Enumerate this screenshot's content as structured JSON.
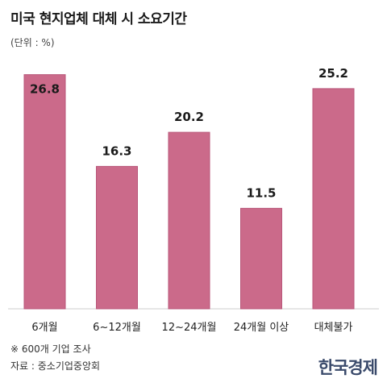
{
  "header": {
    "title": "미국 현지업체 대체 시 소요기간",
    "unit": "(단위 : %)"
  },
  "footer": {
    "note": "※ 600개 기업 조사",
    "source": "자료 : 중소기업중앙회",
    "logo_text": "한국경제"
  },
  "colors": {
    "bar": "#cb6a8a",
    "bar_stroke": "#b85679",
    "axis": "#cccccc"
  },
  "chart_data": {
    "type": "bar",
    "title": "미국 현지업체 대체 시 소요기간",
    "ylabel": "(단위 : %)",
    "categories": [
      "6개월",
      "6~12개월",
      "12~24개월",
      "24개월 이상",
      "대체불가"
    ],
    "values": [
      26.8,
      16.3,
      20.2,
      11.5,
      25.2
    ],
    "value_labels": [
      "26.8",
      "16.3",
      "20.2",
      "11.5",
      "25.2"
    ],
    "ylim": [
      0,
      27.5
    ],
    "grid": false,
    "legend": "none"
  }
}
